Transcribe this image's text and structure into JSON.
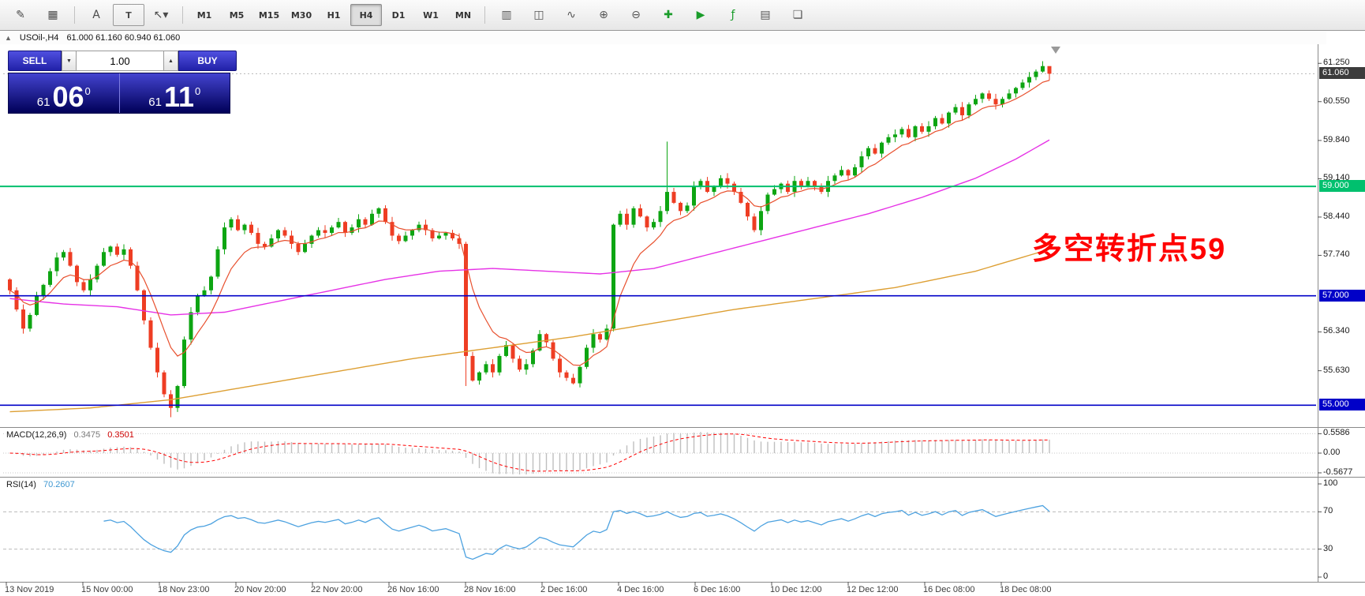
{
  "colors": {
    "candle_up": "#0da512",
    "candle_down": "#ee3d23",
    "ma_fast": "#e8502e",
    "ma_mid": "#e632e6",
    "ma_slow": "#dd9f33",
    "hline_green": "#00c06e",
    "hline_blue": "#0000c8",
    "macd_hist": "#bfbfbf",
    "macd_signal": "#ff0000",
    "rsi_line": "#4da2e0",
    "trade_blue": "#3232c8",
    "annotation_red": "#ff0000"
  },
  "toolbar": {
    "left_icons": [
      {
        "name": "new-chart-icon",
        "glyph": "✎"
      },
      {
        "name": "profiles-icon",
        "glyph": "▦"
      }
    ],
    "draw_tools": [
      {
        "name": "text-tool-button",
        "glyph": "A",
        "boxed": false
      },
      {
        "name": "label-tool-button",
        "glyph": "T",
        "boxed": true
      },
      {
        "name": "arrow-tool-button",
        "glyph": "↖▾",
        "boxed": false
      }
    ],
    "timeframes": [
      "M1",
      "M5",
      "M15",
      "M30",
      "H1",
      "H4",
      "D1",
      "W1",
      "MN"
    ],
    "active_timeframe": "H4",
    "right_icons": [
      {
        "name": "bar-chart-icon",
        "glyph": "▥",
        "color": "#555555"
      },
      {
        "name": "candlestick-chart-icon",
        "glyph": "◫",
        "color": "#555555"
      },
      {
        "name": "line-chart-icon",
        "glyph": "∿",
        "color": "#555555"
      },
      {
        "name": "zoom-in-icon",
        "glyph": "⊕",
        "color": "#555555"
      },
      {
        "name": "zoom-out-icon",
        "glyph": "⊖",
        "color": "#555555"
      },
      {
        "name": "new-order-icon",
        "glyph": "✚",
        "color": "#1a9c2a"
      },
      {
        "name": "auto-trading-icon",
        "glyph": "▶",
        "color": "#1a9c2a"
      },
      {
        "name": "indicators-icon",
        "glyph": "ƒ",
        "color": "#1a9c2a"
      },
      {
        "name": "periods-icon",
        "glyph": "▤",
        "color": "#555555"
      },
      {
        "name": "templates-icon",
        "glyph": "❏",
        "color": "#555555"
      }
    ]
  },
  "chart": {
    "collapse_icon": "▲",
    "symbol_period": "USOil-,H4",
    "ohlc": "61.000 61.160 60.940 61.060"
  },
  "trade_panel": {
    "sell_label": "SELL",
    "buy_label": "BUY",
    "volume": "1.00",
    "spin_down_icon": "▼",
    "spin_up_icon": "▲",
    "bid": {
      "small": "61",
      "big": "06",
      "sup": "0"
    },
    "ask": {
      "small": "61",
      "big": "11",
      "sup": "0"
    }
  },
  "annotation": {
    "text": "多空转折点59"
  },
  "price_scale": {
    "ticks": [
      {
        "label": "61.250",
        "price": 61.25
      },
      {
        "label": "60.550",
        "price": 60.55
      },
      {
        "label": "59.840",
        "price": 59.84
      },
      {
        "label": "59.140",
        "price": 59.14
      },
      {
        "label": "58.440",
        "price": 58.44
      },
      {
        "label": "57.740",
        "price": 57.74
      },
      {
        "label": "56.340",
        "price": 56.34
      },
      {
        "label": "55.630",
        "price": 55.63
      }
    ],
    "current_price": {
      "label": "61.060",
      "price": 61.06
    },
    "level_lines": [
      {
        "label": "59.000",
        "price": 59.0,
        "color": "#00c06e"
      },
      {
        "label": "57.000",
        "price": 57.0,
        "color": "#0000c8"
      },
      {
        "label": "55.000",
        "price": 55.0,
        "color": "#0000c8"
      }
    ]
  },
  "chart_data": {
    "type": "candlestick",
    "symbol": "USOil-",
    "timeframe": "H4",
    "current_ohlc": {
      "open": 61.0,
      "high": 61.16,
      "low": 60.94,
      "close": 61.06
    },
    "y_range": [
      54.6,
      61.6
    ],
    "first_open": 57.3,
    "closes": [
      57.1,
      56.75,
      56.4,
      56.65,
      57.0,
      57.2,
      57.45,
      57.7,
      57.8,
      57.55,
      57.25,
      57.1,
      57.3,
      57.55,
      57.8,
      57.9,
      57.75,
      57.85,
      57.55,
      57.1,
      56.55,
      56.05,
      55.6,
      55.2,
      54.95,
      55.35,
      56.2,
      56.7,
      57.0,
      57.1,
      57.35,
      57.85,
      58.25,
      58.4,
      58.2,
      58.3,
      58.15,
      57.95,
      57.9,
      58.05,
      58.2,
      58.1,
      57.95,
      57.8,
      57.95,
      58.1,
      58.2,
      58.15,
      58.25,
      58.35,
      58.15,
      58.25,
      58.4,
      58.3,
      58.5,
      58.6,
      58.35,
      58.1,
      58.0,
      58.1,
      58.2,
      58.3,
      58.2,
      58.05,
      58.1,
      58.15,
      58.05,
      57.95,
      55.9,
      55.45,
      55.6,
      55.75,
      55.6,
      55.9,
      56.1,
      55.85,
      55.65,
      55.75,
      56.0,
      56.3,
      56.15,
      55.85,
      55.6,
      55.5,
      55.4,
      55.7,
      56.05,
      56.3,
      56.2,
      56.4,
      58.3,
      58.5,
      58.3,
      58.6,
      58.45,
      58.25,
      58.35,
      58.55,
      58.9,
      58.7,
      58.55,
      58.65,
      59.0,
      59.1,
      58.9,
      59.0,
      59.15,
      59.05,
      58.9,
      58.7,
      58.45,
      58.2,
      58.55,
      58.85,
      58.95,
      59.05,
      58.9,
      59.1,
      59.0,
      59.1,
      59.0,
      58.9,
      59.1,
      59.2,
      59.3,
      59.2,
      59.35,
      59.55,
      59.7,
      59.6,
      59.8,
      59.9,
      59.95,
      60.05,
      59.9,
      60.1,
      60.0,
      60.1,
      60.25,
      60.15,
      60.35,
      60.45,
      60.3,
      60.5,
      60.6,
      60.7,
      60.6,
      60.5,
      60.6,
      60.7,
      60.8,
      60.9,
      61.0,
      61.1,
      61.2,
      61.06
    ],
    "wick_overrides": {
      "24": {
        "low": 54.78
      },
      "68": {
        "low": 55.35
      },
      "90": {
        "low": 56.35
      },
      "98": {
        "high": 59.82
      },
      "154": {
        "high": 61.29
      },
      "155": {
        "high": 61.16,
        "low": 60.94
      }
    },
    "ma_fast_period": 8,
    "ma_mid_anchors": [
      [
        0,
        56.95
      ],
      [
        8,
        56.85
      ],
      [
        16,
        56.8
      ],
      [
        24,
        56.65
      ],
      [
        32,
        56.7
      ],
      [
        40,
        56.9
      ],
      [
        48,
        57.1
      ],
      [
        56,
        57.3
      ],
      [
        64,
        57.45
      ],
      [
        72,
        57.5
      ],
      [
        80,
        57.45
      ],
      [
        88,
        57.4
      ],
      [
        96,
        57.5
      ],
      [
        104,
        57.75
      ],
      [
        112,
        58.0
      ],
      [
        120,
        58.25
      ],
      [
        128,
        58.5
      ],
      [
        136,
        58.8
      ],
      [
        144,
        59.15
      ],
      [
        150,
        59.5
      ],
      [
        155,
        59.85
      ]
    ],
    "ma_slow_anchors": [
      [
        0,
        54.88
      ],
      [
        12,
        54.95
      ],
      [
        24,
        55.1
      ],
      [
        36,
        55.35
      ],
      [
        48,
        55.6
      ],
      [
        60,
        55.85
      ],
      [
        72,
        56.05
      ],
      [
        84,
        56.25
      ],
      [
        96,
        56.5
      ],
      [
        108,
        56.75
      ],
      [
        120,
        56.95
      ],
      [
        132,
        57.15
      ],
      [
        144,
        57.45
      ],
      [
        155,
        57.85
      ]
    ],
    "level_lines": [
      59.0,
      57.0,
      55.0
    ]
  },
  "macd_panel": {
    "name": "MACD(12,26,9)",
    "value_main": "0.3475",
    "value_signal": "0.3501",
    "scale": [
      {
        "label": "0.5586",
        "value": 0.5586
      },
      {
        "label": "0.00",
        "value": 0.0
      },
      {
        "label": "-0.5677",
        "value": -0.5677
      }
    ]
  },
  "rsi_panel": {
    "name": "RSI(14)",
    "value": "70.2607",
    "scale": [
      {
        "label": "100",
        "value": 100
      },
      {
        "label": "70",
        "value": 70
      },
      {
        "label": "30",
        "value": 30
      },
      {
        "label": "0",
        "value": 0
      }
    ],
    "levels": [
      70,
      30
    ]
  },
  "time_axis": [
    "13 Nov 2019",
    "15 Nov 00:00",
    "18 Nov 23:00",
    "20 Nov 20:00",
    "22 Nov 20:00",
    "26 Nov 16:00",
    "28 Nov 16:00",
    "2 Dec 16:00",
    "4 Dec 16:00",
    "6 Dec 16:00",
    "10 Dec 12:00",
    "12 Dec 12:00",
    "16 Dec 08:00",
    "18 Dec 08:00"
  ]
}
